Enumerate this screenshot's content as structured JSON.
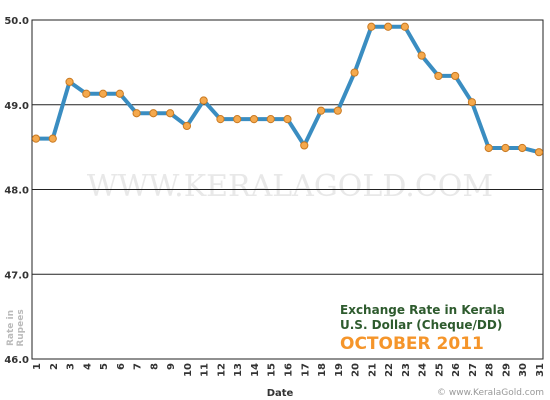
{
  "chart_data": {
    "type": "line",
    "title_lines": [
      "Exchange Rate in Kerala",
      "U.S. Dollar (Cheque/DD)"
    ],
    "subtitle": "OCTOBER 2011",
    "xlabel": "Date",
    "ylabel": "Rate in Rupees",
    "watermark": "WWW.KERALAGOLD.COM",
    "footer_credit": "© www.KeralaGold.com",
    "x": [
      1,
      2,
      3,
      4,
      5,
      6,
      7,
      8,
      9,
      10,
      11,
      12,
      13,
      14,
      15,
      16,
      17,
      18,
      19,
      20,
      21,
      22,
      23,
      24,
      25,
      26,
      27,
      28,
      29,
      30,
      31
    ],
    "values": [
      48.6,
      48.6,
      49.27,
      49.13,
      49.13,
      49.13,
      48.9,
      48.9,
      48.9,
      48.75,
      49.05,
      48.83,
      48.83,
      48.83,
      48.83,
      48.83,
      48.52,
      48.93,
      48.93,
      49.38,
      49.92,
      49.92,
      49.92,
      49.58,
      49.34,
      49.34,
      49.03,
      48.49,
      48.49,
      48.49,
      48.44
    ],
    "yticks": [
      "46.0",
      "47.0",
      "48.0",
      "49.0",
      "50.0"
    ],
    "ylim": [
      46.0,
      50.0
    ],
    "xlim": [
      1,
      31
    ],
    "grid": true,
    "colors": {
      "line": "#3a8dc1",
      "marker_fill": "#f5a94d",
      "marker_stroke": "#c97a22",
      "title": "#2e5b2e",
      "subtitle": "#f5952a",
      "watermark": "#e8e8e8"
    }
  }
}
